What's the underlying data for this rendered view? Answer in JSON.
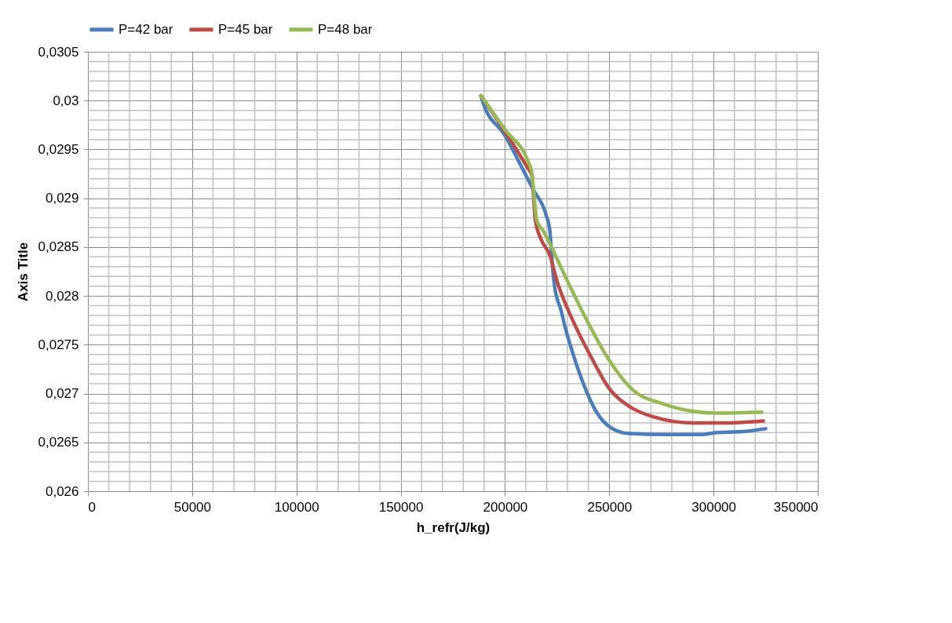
{
  "chart_data": {
    "type": "line",
    "xlabel": "h_refr(J/kg)",
    "ylabel": "Axis Title",
    "xlim": [
      0,
      350000
    ],
    "xticks": [
      0,
      50000,
      100000,
      150000,
      200000,
      250000,
      300000,
      350000
    ],
    "ylim": [
      0.026,
      0.0305
    ],
    "yticks": [
      {
        "value": 0.026,
        "label": "0,026"
      },
      {
        "value": 0.0265,
        "label": "0,0265"
      },
      {
        "value": 0.027,
        "label": "0,027"
      },
      {
        "value": 0.0275,
        "label": "0,0275"
      },
      {
        "value": 0.028,
        "label": "0,028"
      },
      {
        "value": 0.0285,
        "label": "0,0285"
      },
      {
        "value": 0.029,
        "label": "0,029"
      },
      {
        "value": 0.0295,
        "label": "0,0295"
      },
      {
        "value": 0.03,
        "label": "0,03"
      },
      {
        "value": 0.0305,
        "label": "0,0305"
      }
    ],
    "grid": true,
    "legend": "top",
    "marker": "none",
    "line_style": "solid",
    "series": [
      {
        "name": "P=42 bar",
        "color": "#4a7ebb",
        "x": [
          188500,
          189300,
          200100,
          209900,
          213500,
          219700,
          221500,
          222600,
          223700,
          226900,
          229100,
          232700,
          237800,
          243600,
          250800,
          259500,
          277600,
          294200,
          301500,
          313800,
          325000
        ],
        "values": [
          0.03005,
          0.02999,
          0.02964,
          0.02924,
          0.02909,
          0.02883,
          0.02867,
          0.02835,
          0.02811,
          0.02785,
          0.02766,
          0.0274,
          0.02709,
          0.02682,
          0.02665,
          0.02659,
          0.02658,
          0.02658,
          0.0266,
          0.02661,
          0.02664
        ]
      },
      {
        "name": "P=45 bar",
        "color": "#be4b48",
        "x": [
          188500,
          200100,
          210600,
          212800,
          214600,
          217100,
          221800,
          224400,
          232700,
          241400,
          249700,
          259500,
          271400,
          289500,
          307600,
          323900
        ],
        "values": [
          0.03005,
          0.02968,
          0.02932,
          0.02924,
          0.02877,
          0.02859,
          0.0284,
          0.02819,
          0.02774,
          0.02737,
          0.02706,
          0.02687,
          0.02676,
          0.0267,
          0.0267,
          0.02672
        ]
      },
      {
        "name": "P=48 bar",
        "color": "#98b954",
        "x": [
          188500,
          200100,
          211000,
          212800,
          215300,
          218200,
          229100,
          240000,
          249700,
          261700,
          275000,
          289500,
          301500,
          323200
        ],
        "values": [
          0.03005,
          0.0297,
          0.02938,
          0.02927,
          0.02877,
          0.02867,
          0.02819,
          0.02772,
          0.02735,
          0.02703,
          0.0269,
          0.02682,
          0.0268,
          0.02681
        ]
      }
    ]
  }
}
